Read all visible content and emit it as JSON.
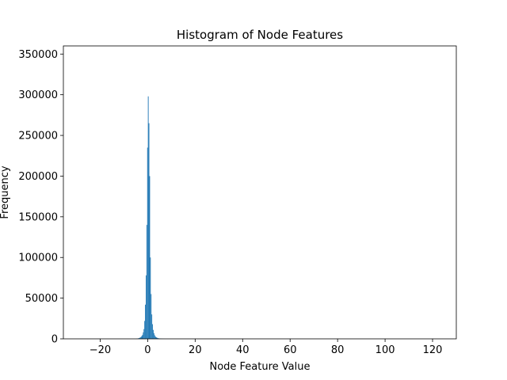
{
  "colors": {
    "bar": "#1f77b4",
    "axis": "#000000",
    "background": "#ffffff"
  },
  "chart_data": {
    "type": "bar",
    "title": "Histogram of Node Features",
    "xlabel": "Node Feature Value",
    "ylabel": "Frequency",
    "xlim": [
      -35.5,
      130
    ],
    "ylim": [
      0,
      360000
    ],
    "xticks": [
      -20,
      0,
      20,
      40,
      60,
      80,
      100,
      120
    ],
    "xtick_labels": [
      "−20",
      "0",
      "20",
      "40",
      "60",
      "80",
      "100",
      "120"
    ],
    "yticks": [
      0,
      50000,
      100000,
      150000,
      200000,
      250000,
      300000,
      350000
    ],
    "ytick_labels": [
      "0",
      "50000",
      "100000",
      "150000",
      "200000",
      "250000",
      "300000",
      "350000"
    ],
    "grid": false,
    "bin_width": 0.3,
    "bins": [
      [
        -5.0,
        100
      ],
      [
        -4.7,
        200
      ],
      [
        -4.4,
        400
      ],
      [
        -4.1,
        600
      ],
      [
        -3.8,
        900
      ],
      [
        -3.5,
        1300
      ],
      [
        -3.2,
        1800
      ],
      [
        -2.9,
        2500
      ],
      [
        -2.6,
        3500
      ],
      [
        -2.3,
        5000
      ],
      [
        -2.0,
        8000
      ],
      [
        -1.7,
        12000
      ],
      [
        -1.4,
        22000
      ],
      [
        -1.1,
        42000
      ],
      [
        -0.8,
        78000
      ],
      [
        -0.5,
        140000
      ],
      [
        -0.2,
        235000
      ],
      [
        0.1,
        298000
      ],
      [
        0.4,
        265000
      ],
      [
        0.7,
        200000
      ],
      [
        1.0,
        100000
      ],
      [
        1.3,
        55000
      ],
      [
        1.6,
        30000
      ],
      [
        1.9,
        18000
      ],
      [
        2.2,
        11000
      ],
      [
        2.5,
        7000
      ],
      [
        2.8,
        4500
      ],
      [
        3.1,
        3000
      ],
      [
        3.4,
        2000
      ],
      [
        3.7,
        1500
      ],
      [
        4.0,
        1100
      ],
      [
        4.3,
        800
      ],
      [
        4.6,
        600
      ],
      [
        4.9,
        450
      ],
      [
        5.2,
        350
      ],
      [
        5.5,
        250
      ],
      [
        5.8,
        180
      ],
      [
        6.1,
        120
      ],
      [
        6.4,
        80
      ],
      [
        6.7,
        50
      ]
    ]
  }
}
